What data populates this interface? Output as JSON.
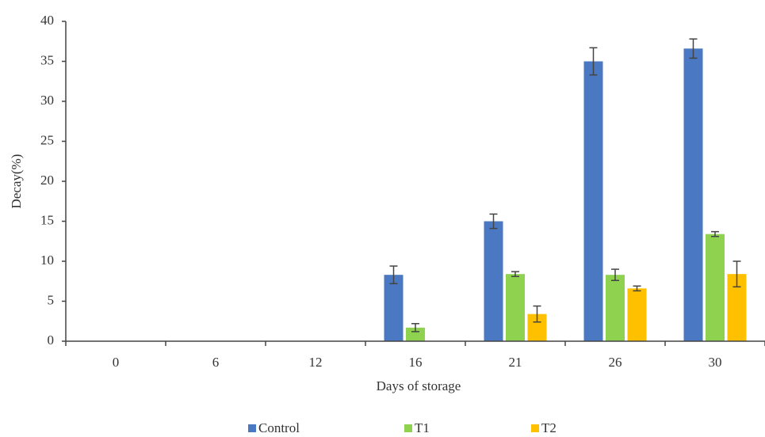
{
  "chart_data": {
    "type": "bar",
    "x_label": "Days of storage",
    "y_label": "Decay(%)",
    "categories": [
      "0",
      "6",
      "12",
      "16",
      "21",
      "26",
      "30"
    ],
    "series": [
      {
        "name": "Control",
        "color": "#4a78c2",
        "values": [
          0,
          0,
          0,
          8.3,
          15,
          35,
          36.6
        ],
        "errors": [
          0,
          0,
          0,
          1.1,
          0.9,
          1.7,
          1.2
        ]
      },
      {
        "name": "T1",
        "color": "#8ed250",
        "values": [
          0,
          0,
          0,
          1.7,
          8.4,
          8.3,
          13.4
        ],
        "errors": [
          0,
          0,
          0,
          0.5,
          0.3,
          0.7,
          0.3
        ]
      },
      {
        "name": "T2",
        "color": "#ffc000",
        "values": [
          0,
          0,
          0,
          0,
          3.4,
          6.6,
          8.4
        ],
        "errors": [
          0,
          0,
          0,
          0,
          1.0,
          0.3,
          1.6
        ]
      }
    ],
    "ylim": [
      0,
      40
    ],
    "yticks": [
      0,
      5,
      10,
      15,
      20,
      25,
      30,
      35,
      40
    ],
    "grid": false,
    "legend": "bottom"
  }
}
